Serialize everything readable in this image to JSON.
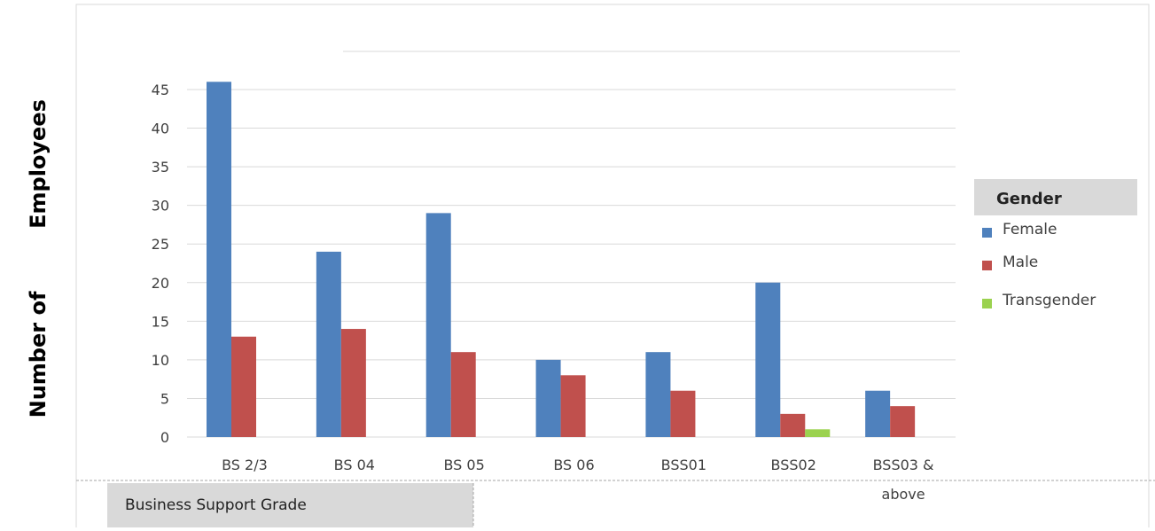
{
  "chart_data": {
    "type": "bar",
    "categories": [
      "BS 2/3",
      "BS 04",
      "BS 05",
      "BS 06",
      "BSS01",
      "BSS02",
      "BSS03 & above"
    ],
    "series": [
      {
        "name": "Female",
        "values": [
          46,
          24,
          29,
          10,
          11,
          20,
          6
        ]
      },
      {
        "name": "Male",
        "values": [
          13,
          14,
          11,
          8,
          6,
          3,
          4
        ]
      },
      {
        "name": "Transgender",
        "values": [
          0,
          0,
          0,
          0,
          0,
          1,
          0
        ]
      }
    ],
    "colors": [
      "#4f81bd",
      "#c0504d",
      "#9bd24f"
    ],
    "ylim": [
      0,
      45
    ],
    "yticks": [
      "0",
      "5",
      "10",
      "15",
      "20",
      "25",
      "30",
      "35",
      "40",
      "45"
    ],
    "ylabel_line1": "Number of",
    "ylabel_line2": "Employees",
    "xlabel": "Business Support Grade",
    "legend_title": "Gender",
    "legend_position": "right",
    "grid": true
  }
}
